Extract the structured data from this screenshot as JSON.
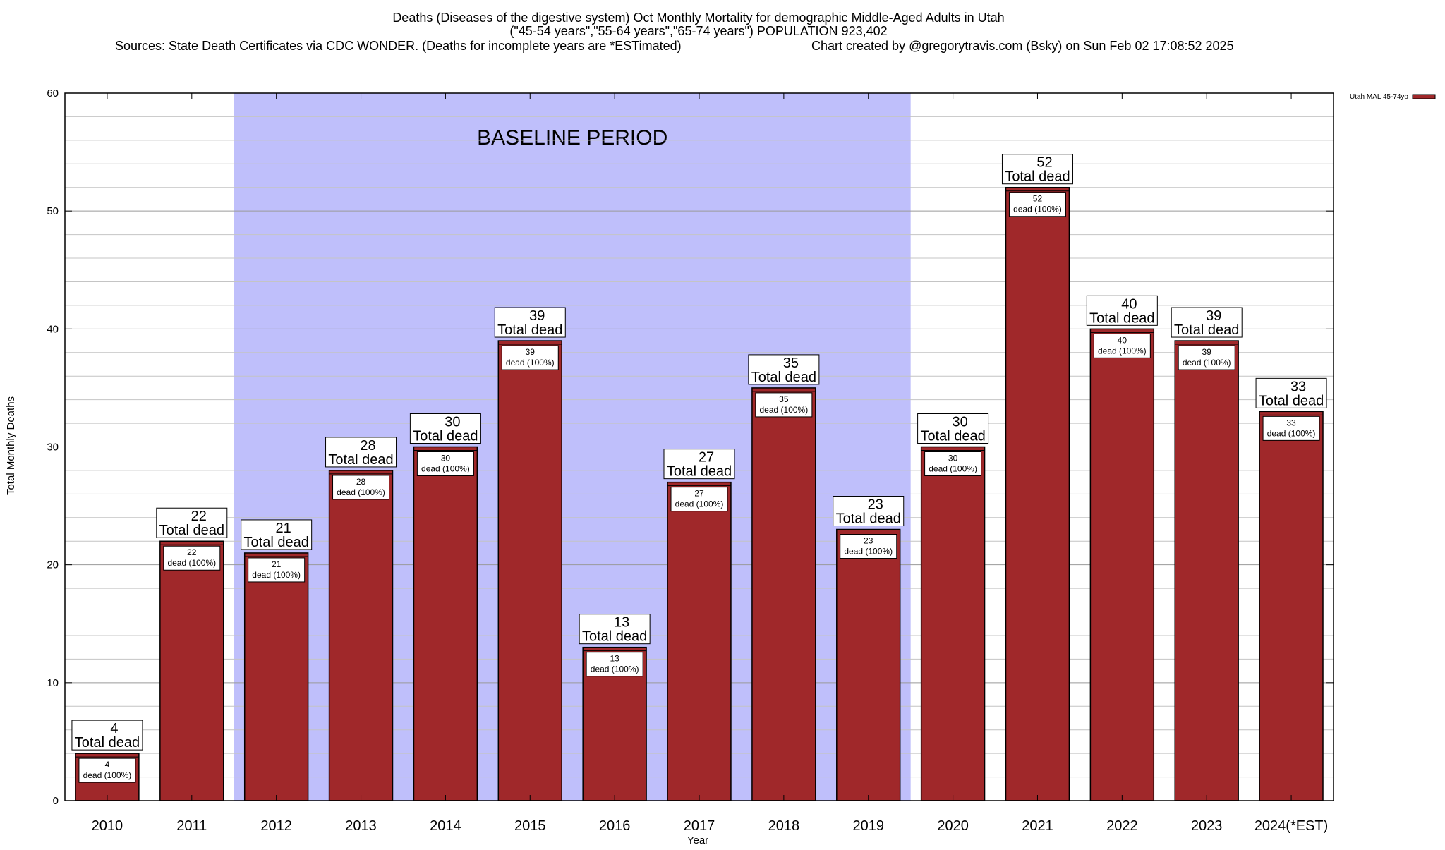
{
  "chart_data": {
    "type": "bar",
    "title_lines": [
      "Deaths (Diseases of the digestive system) Oct Monthly Mortality for demographic Middle-Aged Adults in Utah",
      "(\"45-54 years\",\"55-64 years\",\"65-74 years\") POPULATION 923,402"
    ],
    "source_line": "Sources: State Death Certificates via CDC WONDER. (Deaths for incomplete years are *ESTimated)",
    "credit_line": "Chart created by @gregorytravis.com (Bsky) on Sun Feb 02 17:08:52 2025",
    "xlabel": "Year",
    "ylabel": "Total Monthly Deaths",
    "ylim": [
      0,
      60
    ],
    "y_major_ticks": [
      0,
      10,
      20,
      30,
      40,
      50,
      60
    ],
    "y_minor_step": 2,
    "categories": [
      "2010",
      "2011",
      "2012",
      "2013",
      "2014",
      "2015",
      "2016",
      "2017",
      "2018",
      "2019",
      "2020",
      "2021",
      "2022",
      "2023",
      "2024(*EST)"
    ],
    "series": [
      {
        "name": "Utah MAL 45-74yo",
        "color": "#a0282a",
        "values": [
          4,
          22,
          21,
          28,
          30,
          39,
          13,
          27,
          35,
          23,
          30,
          52,
          40,
          39,
          33
        ]
      }
    ],
    "top_label_suffix": "Total dead",
    "inner_label_suffix": "dead (100%)",
    "baseline_period": {
      "label": "BASELINE PERIOD",
      "start_category": "2012",
      "end_category": "2019",
      "color": "#bfbffb"
    },
    "grid": true,
    "legend_position": "top-right"
  }
}
